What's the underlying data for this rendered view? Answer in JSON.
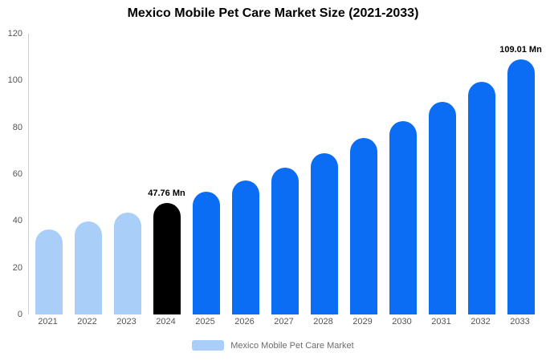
{
  "title": "Mexico Mobile Pet Care Market Size (2021-2033)",
  "legend": {
    "label": "Mexico Mobile Pet Care Market",
    "swatch_color": "#A9CEF7"
  },
  "chart_data": {
    "type": "bar",
    "title": "Mexico Mobile Pet Care Market Size (2021-2033)",
    "xlabel": "",
    "ylabel": "",
    "ylim": [
      0,
      120
    ],
    "yticks": [
      0,
      20,
      40,
      60,
      80,
      100,
      120
    ],
    "grid": false,
    "legend_position": "bottom",
    "categories": [
      "2021",
      "2022",
      "2023",
      "2024",
      "2025",
      "2026",
      "2027",
      "2028",
      "2029",
      "2030",
      "2031",
      "2032",
      "2033"
    ],
    "values": [
      36.3,
      39.8,
      43.6,
      47.76,
      52.3,
      57.4,
      62.9,
      68.9,
      75.5,
      82.8,
      90.7,
      99.5,
      109.01
    ],
    "bar_colors": [
      "#A9CEF7",
      "#A9CEF7",
      "#A9CEF7",
      "#000000",
      "#0B6DF3",
      "#0B6DF3",
      "#0B6DF3",
      "#0B6DF3",
      "#0B6DF3",
      "#0B6DF3",
      "#0B6DF3",
      "#0B6DF3",
      "#0B6DF3"
    ],
    "annotations": [
      {
        "category": "2024",
        "text": "47.76 Mn"
      },
      {
        "category": "2033",
        "text": "109.01 Mn"
      }
    ]
  }
}
